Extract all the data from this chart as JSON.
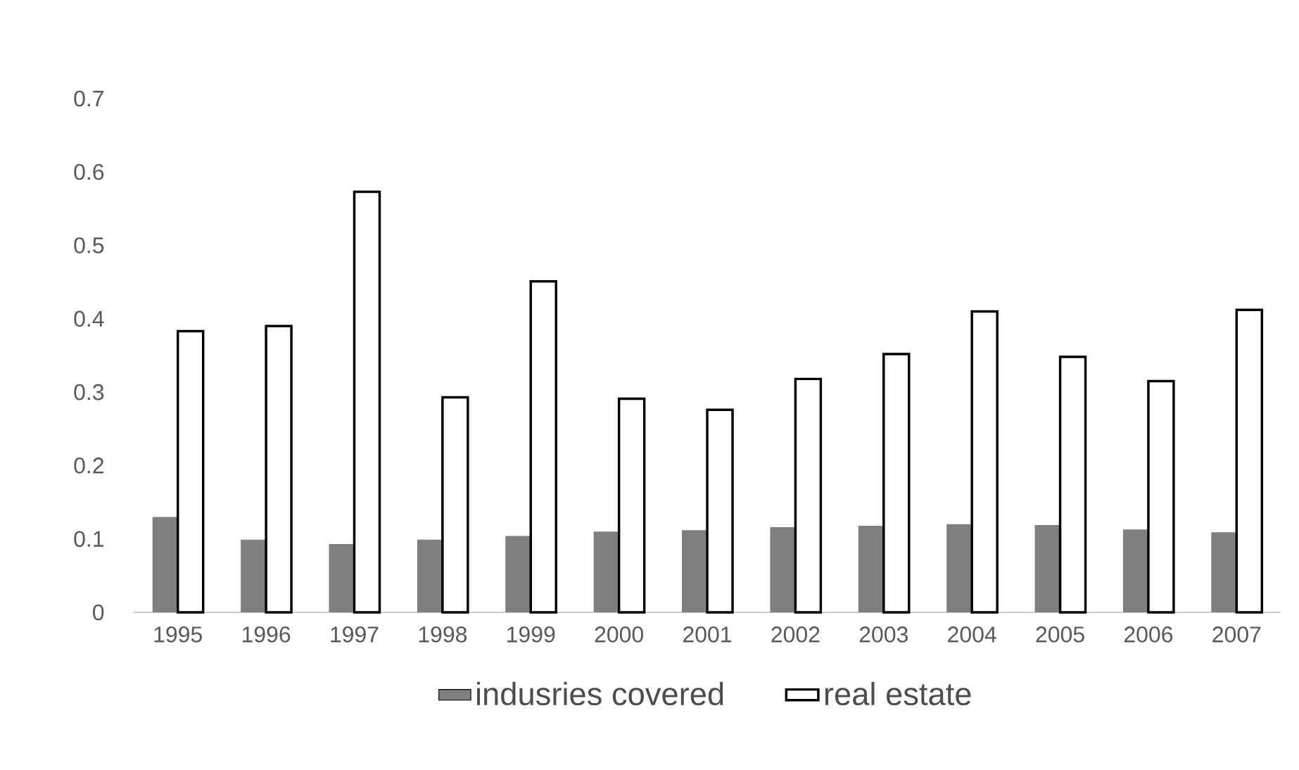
{
  "chart_data": {
    "type": "bar",
    "categories": [
      "1995",
      "1996",
      "1997",
      "1998",
      "1999",
      "2000",
      "2001",
      "2002",
      "2003",
      "2004",
      "2005",
      "2006",
      "2007"
    ],
    "series": [
      {
        "name": "indusries covered",
        "color": "#7f7f7f",
        "values": [
          0.13,
          0.099,
          0.093,
          0.099,
          0.104,
          0.11,
          0.112,
          0.116,
          0.118,
          0.12,
          0.119,
          0.113,
          0.109
        ]
      },
      {
        "name": "real estate",
        "color": "#ffffff",
        "values": [
          0.383,
          0.39,
          0.573,
          0.293,
          0.451,
          0.291,
          0.276,
          0.318,
          0.352,
          0.41,
          0.348,
          0.315,
          0.412
        ]
      }
    ],
    "ylim": [
      0,
      0.7
    ],
    "yticks": [
      0,
      0.1,
      0.2,
      0.3,
      0.4,
      0.5,
      0.6,
      0.7
    ],
    "legend": "bottom"
  }
}
